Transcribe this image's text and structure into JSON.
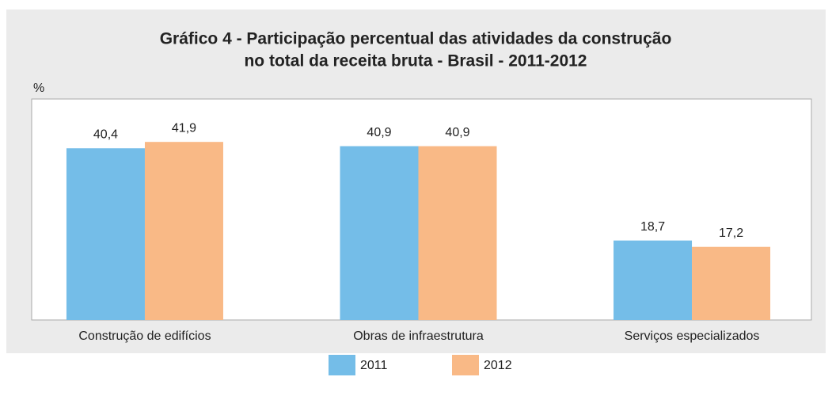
{
  "chart_data": {
    "type": "bar",
    "title": [
      "Gráfico 4 - Participação percentual das atividades da construção",
      "no total da receita bruta - Brasil - 2011-2012"
    ],
    "y_label": "%",
    "categories": [
      "Construção de edifícios",
      "Obras de infraestrutura",
      "Serviços especializados"
    ],
    "series": [
      {
        "name": "2011",
        "color": "#74bde8",
        "values": [
          40.4,
          40.9,
          18.7
        ],
        "value_labels": [
          "40,4",
          "40,9",
          "18,7"
        ]
      },
      {
        "name": "2012",
        "color": "#f9b986",
        "values": [
          41.9,
          40.9,
          17.2
        ],
        "value_labels": [
          "41,9",
          "40,9",
          "17,2"
        ]
      }
    ],
    "ylim": [
      0,
      52
    ]
  }
}
